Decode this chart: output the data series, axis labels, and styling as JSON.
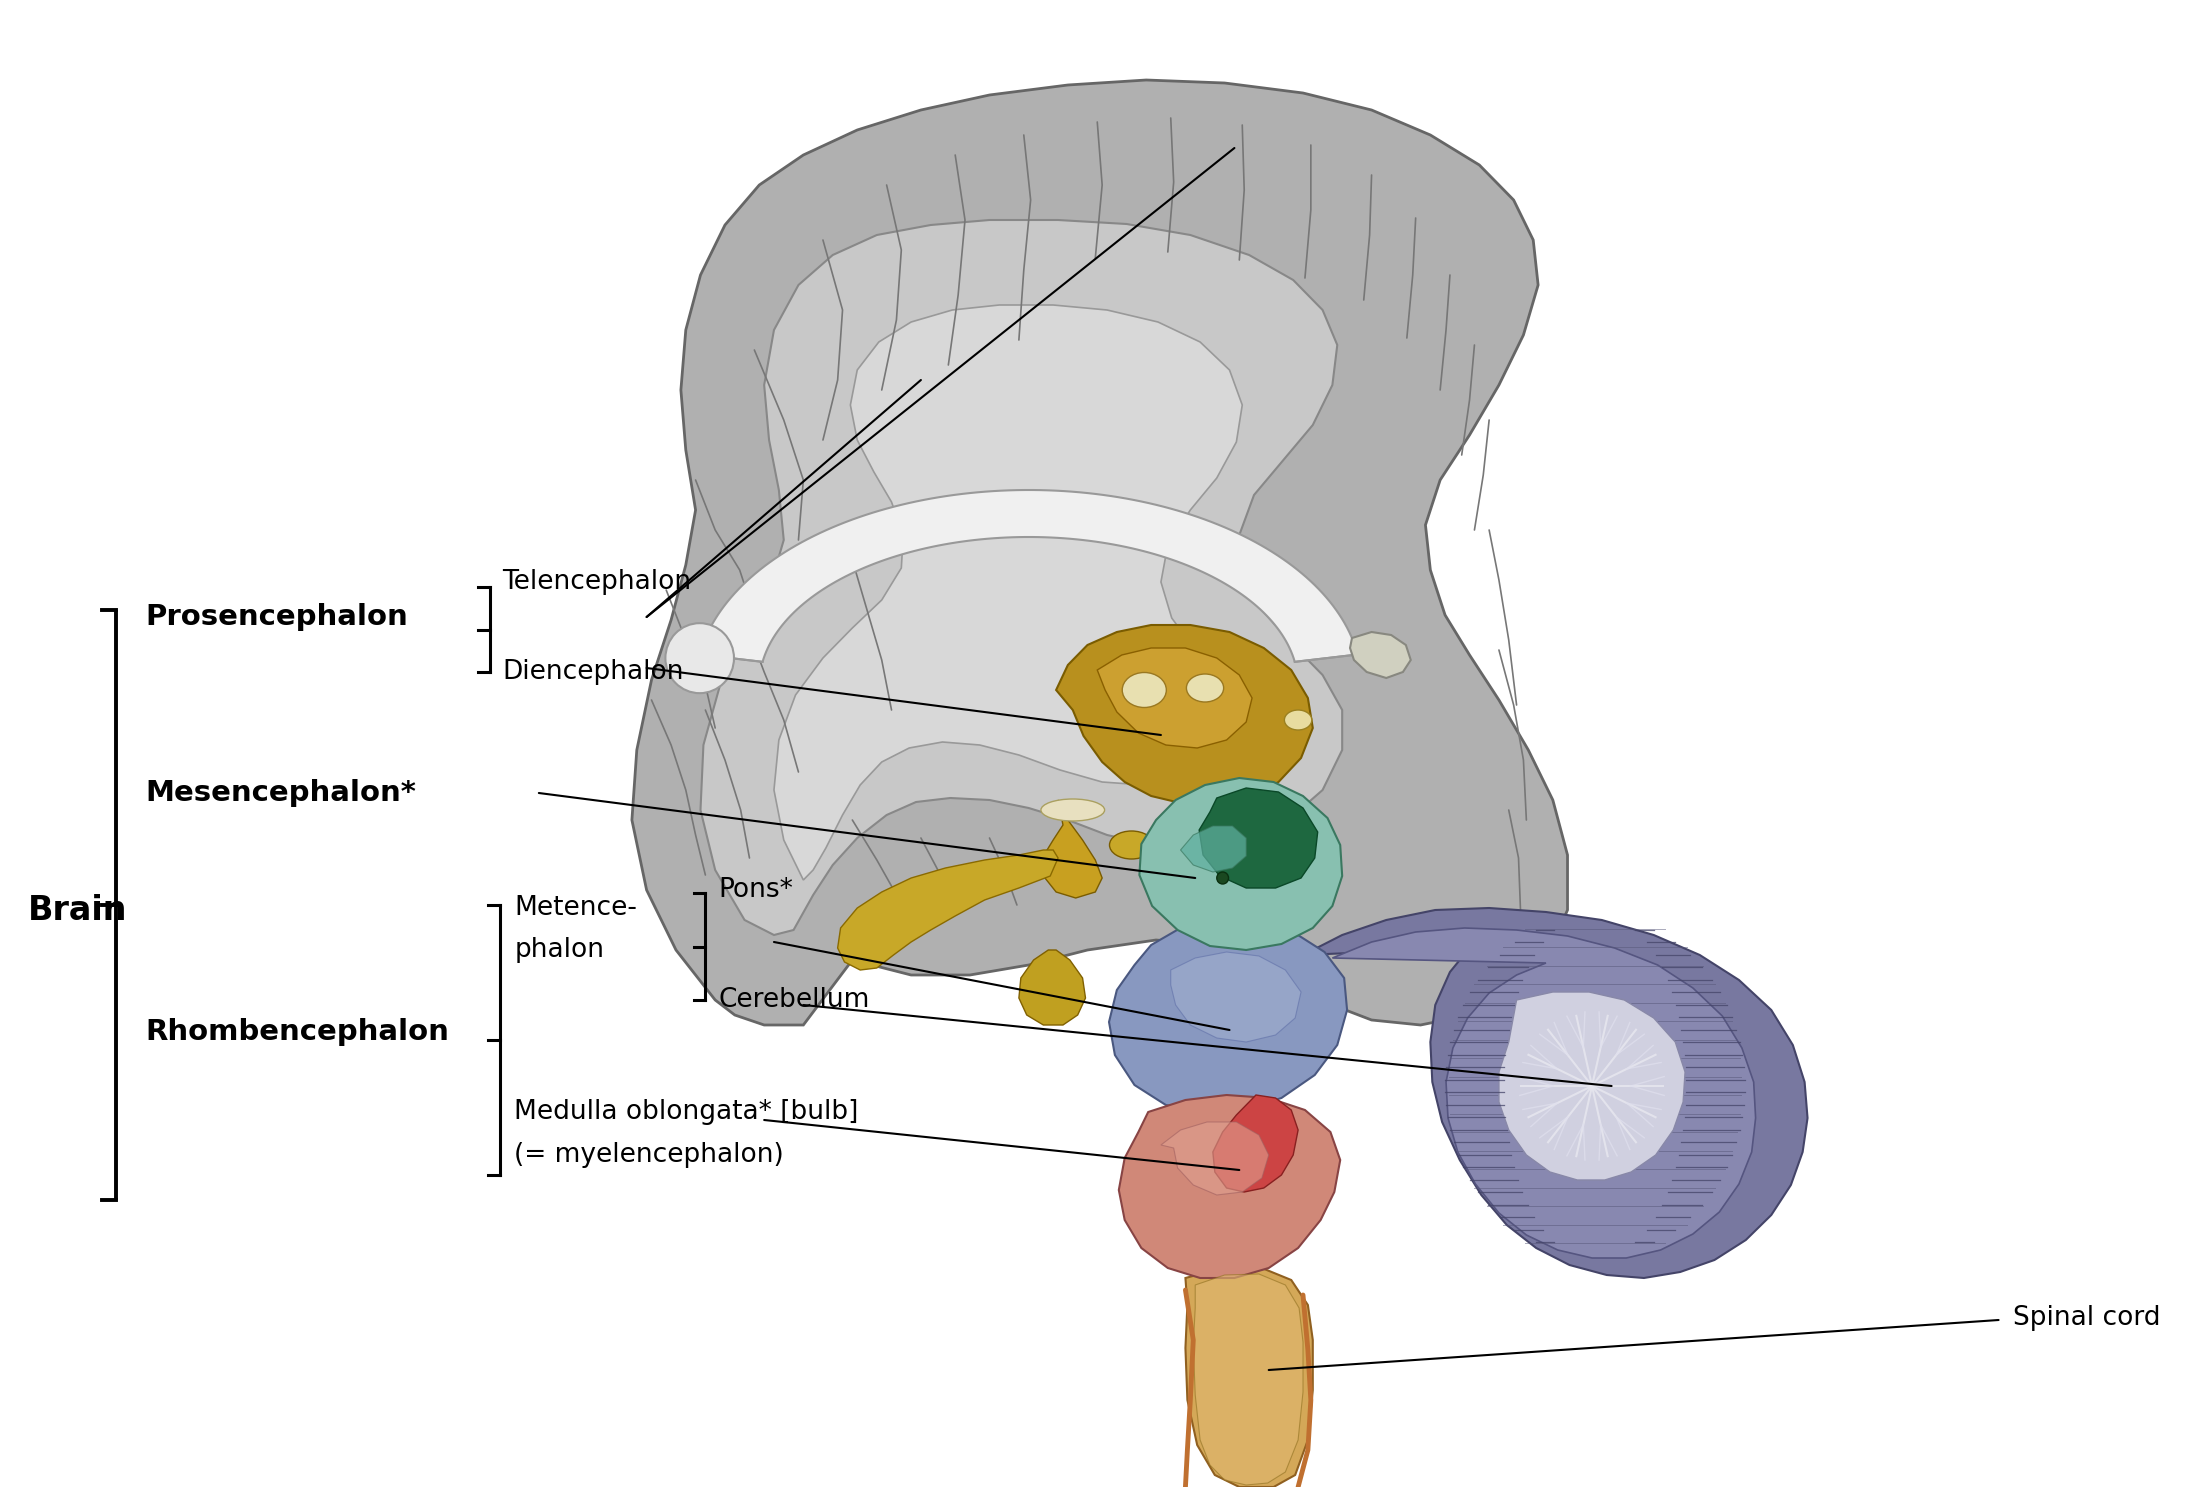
{
  "figure_width": 21.88,
  "figure_height": 14.87,
  "background_color": "#ffffff",
  "labels": {
    "brain": "Brain",
    "prosencephalon": "Prosencephalon",
    "mesencephalon": "Mesencephalon*",
    "rhombencephalon": "Rhombencephalon",
    "telencephalon": "Telencephalon",
    "diencephalon": "Diencephalon",
    "metencephalon_line1": "Metence-",
    "metencephalon_line2": "phalon",
    "pons": "Pons*",
    "cerebellum": "Cerebellum",
    "medulla_line1": "Medulla oblongata* [bulb]",
    "medulla_line2": "(= myelencephalon)",
    "spinal_cord": "Spinal cord"
  },
  "colors": {
    "cortex_outer": "#b8b8b8",
    "cortex_mid": "#c8c8c8",
    "cortex_inner_white": "#e8e8e8",
    "corpus_callosum": "#ececec",
    "diencephalon_fill": "#b8902a",
    "diencephalon_light": "#d4b060",
    "mesencephalon_teal": "#90c8b8",
    "mesencephalon_dark": "#2a7850",
    "pons_fill": "#8898c0",
    "cerebellum_outer": "#8888aa",
    "cerebellum_inner": "#c0c0d4",
    "cerebellum_white": "#d8d8e8",
    "medulla_fill": "#d08878",
    "medulla_red": "#cc4444",
    "spinal_cord_fill": "#d4a858",
    "spinal_cord_orange": "#c88030",
    "temporal_lobe": "#b0b0b0",
    "text_color": "#000000"
  },
  "font_sizes": {
    "brain_label": 24,
    "main_labels": 21,
    "sub_labels": 19,
    "small_labels": 17
  }
}
